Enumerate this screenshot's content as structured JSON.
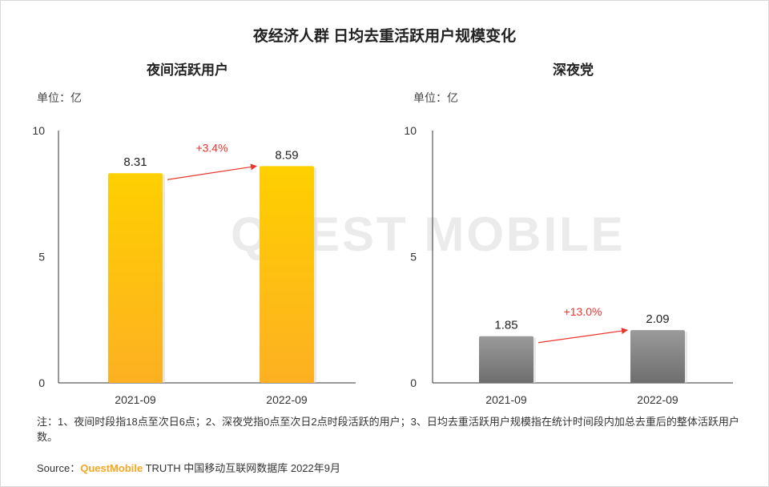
{
  "title": "夜经济人群  日均去重活跃用户规模变化",
  "watermark": "QUEST MOBILE",
  "note": "注：1、夜间时段指18点至次日6点；2、深夜党指0点至次日2点时段活跃的用户；3、日均去重活跃用户规模指在统计时间段内加总去重后的整体活跃用户数。",
  "source": {
    "prefix": "Source：",
    "brand": "QuestMobile",
    "rest": " TRUTH 中国移动互联网数据库 2022年9月"
  },
  "chart_data": [
    {
      "type": "bar",
      "title": "夜间活跃用户",
      "unit": "单位：亿",
      "categories": [
        "2021-09",
        "2022-09"
      ],
      "values": [
        8.31,
        8.59
      ],
      "value_labels": [
        "8.31",
        "8.59"
      ],
      "ylim": [
        0,
        10
      ],
      "yticks": [
        "0",
        "5",
        "10"
      ],
      "growth": "+3.4%",
      "bar_color_top": "#ffd000",
      "bar_color_bottom": "#fdb022",
      "arrow_color": "#e8362d"
    },
    {
      "type": "bar",
      "title": "深夜党",
      "unit": "单位：亿",
      "categories": [
        "2021-09",
        "2022-09"
      ],
      "values": [
        1.85,
        2.09
      ],
      "value_labels": [
        "1.85",
        "2.09"
      ],
      "ylim": [
        0,
        10
      ],
      "yticks": [
        "0",
        "5",
        "10"
      ],
      "growth": "+13.0%",
      "bar_color_top": "#9a9a9a",
      "bar_color_bottom": "#6e6e6e",
      "arrow_color": "#e8362d"
    }
  ]
}
